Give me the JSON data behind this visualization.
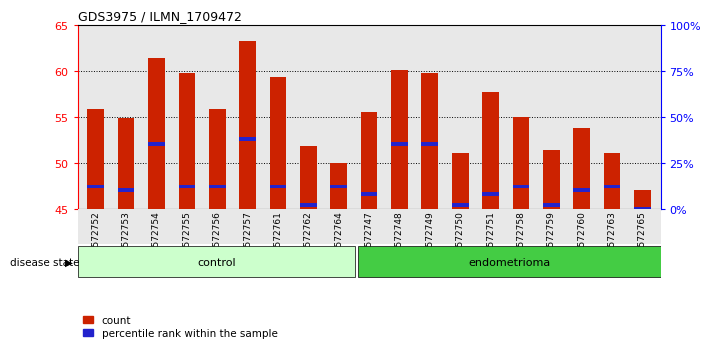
{
  "title": "GDS3975 / ILMN_1709472",
  "samples": [
    "GSM572752",
    "GSM572753",
    "GSM572754",
    "GSM572755",
    "GSM572756",
    "GSM572757",
    "GSM572761",
    "GSM572762",
    "GSM572764",
    "GSM572747",
    "GSM572748",
    "GSM572749",
    "GSM572750",
    "GSM572751",
    "GSM572758",
    "GSM572759",
    "GSM572760",
    "GSM572763",
    "GSM572765"
  ],
  "counts": [
    55.8,
    54.9,
    61.4,
    59.7,
    55.8,
    63.2,
    59.3,
    51.8,
    50.0,
    55.5,
    60.1,
    59.7,
    51.0,
    57.7,
    55.0,
    51.4,
    53.8,
    51.0,
    47.0
  ],
  "percentile_ranks": [
    12,
    10,
    35,
    12,
    12,
    38,
    12,
    2,
    12,
    8,
    35,
    35,
    2,
    8,
    12,
    2,
    10,
    12,
    0
  ],
  "base": 45,
  "ylim_left": [
    45,
    65
  ],
  "ylim_right": [
    0,
    100
  ],
  "yticks_left": [
    45,
    50,
    55,
    60,
    65
  ],
  "yticks_right": [
    0,
    25,
    50,
    75,
    100
  ],
  "ytick_labels_right": [
    "0%",
    "25%",
    "50%",
    "75%",
    "100%"
  ],
  "n_control": 9,
  "n_endo": 10,
  "bar_color": "#CC2200",
  "marker_color": "#2222CC",
  "control_bg": "#CCFFCC",
  "endo_bg": "#44CC44",
  "axis_bg": "#E8E8E8",
  "disease_state_label": "disease state",
  "control_label": "control",
  "endo_label": "endometrioma",
  "legend_count": "count",
  "legend_pct": "percentile rank within the sample",
  "bar_width": 0.55
}
